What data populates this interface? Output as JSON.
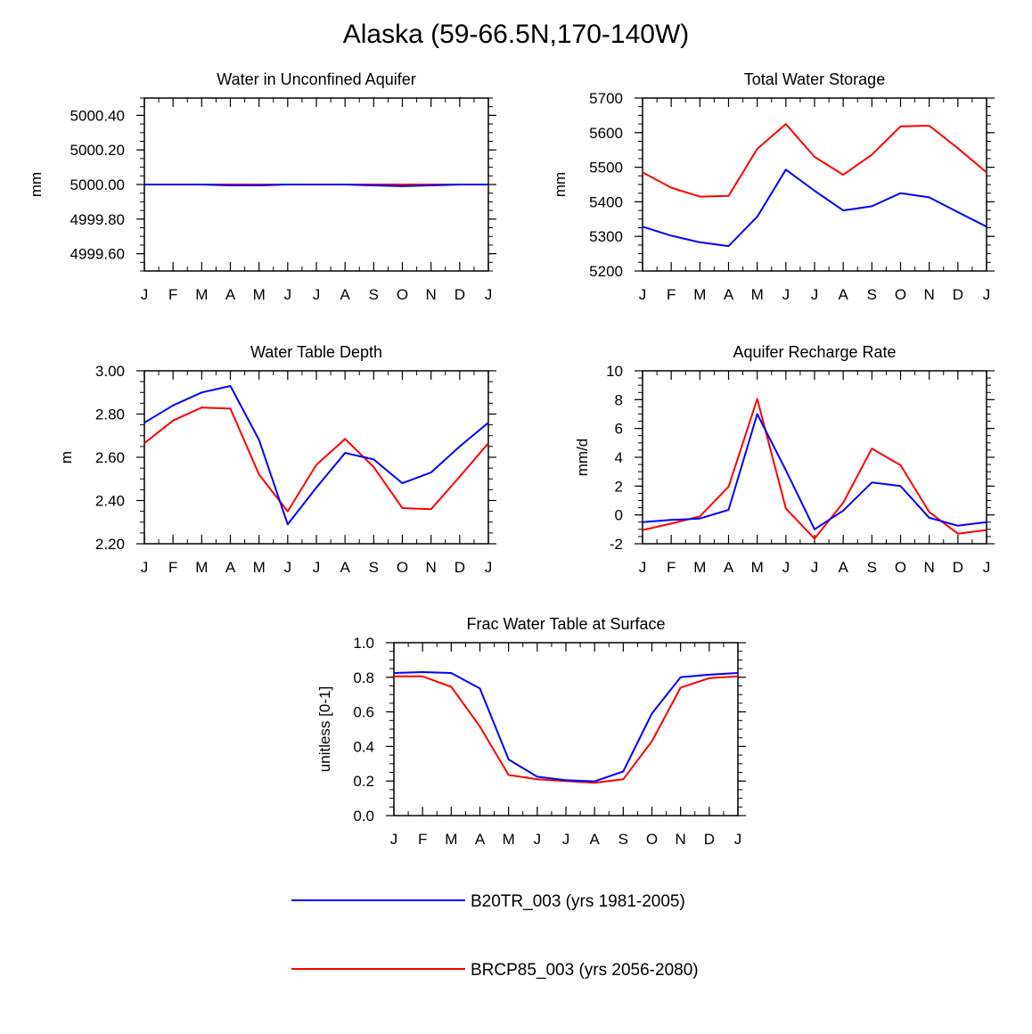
{
  "title": "Alaska (59-66.5N,170-140W)",
  "months": [
    "J",
    "F",
    "M",
    "A",
    "M",
    "J",
    "J",
    "A",
    "S",
    "O",
    "N",
    "D",
    "J"
  ],
  "series_info": [
    {
      "name": "B20TR_003 (yrs 1981-2005)",
      "color": "#0000ff"
    },
    {
      "name": "BRCP85_003 (yrs 2056-2080)",
      "color": "#ff0000"
    }
  ],
  "chart_data": [
    {
      "type": "line",
      "title": "Water in Unconfined Aquifer",
      "ylabel": "mm",
      "ylim": [
        4999.5,
        5000.5
      ],
      "yticks": [
        4999.6,
        4999.8,
        5000.0,
        5000.2,
        5000.4
      ],
      "ytick_labels": [
        "4999.60",
        "4999.80",
        "5000.00",
        "5000.20",
        "5000.40"
      ],
      "categories": [
        "J",
        "F",
        "M",
        "A",
        "M",
        "J",
        "J",
        "A",
        "S",
        "O",
        "N",
        "D",
        "J"
      ],
      "series": [
        {
          "name": "B20TR_003 (yrs 1981-2005)",
          "values": [
            5000.0,
            5000.0,
            5000.0,
            4999.995,
            4999.995,
            5000.0,
            5000.0,
            5000.0,
            4999.995,
            4999.99,
            4999.995,
            5000.0,
            5000.0
          ]
        },
        {
          "name": "BRCP85_003 (yrs 2056-2080)",
          "values": [
            5000.0,
            5000.0,
            5000.0,
            5000.0,
            5000.0,
            5000.0,
            5000.0,
            5000.0,
            5000.0,
            5000.0,
            5000.0,
            5000.0,
            5000.0
          ]
        }
      ]
    },
    {
      "type": "line",
      "title": "Total Water Storage",
      "ylabel": "mm",
      "ylim": [
        5200,
        5700
      ],
      "yticks": [
        5200,
        5300,
        5400,
        5500,
        5600,
        5700
      ],
      "ytick_labels": [
        "5200",
        "5300",
        "5400",
        "5500",
        "5600",
        "5700"
      ],
      "categories": [
        "J",
        "F",
        "M",
        "A",
        "M",
        "J",
        "J",
        "A",
        "S",
        "O",
        "N",
        "D",
        "J"
      ],
      "series": [
        {
          "name": "B20TR_003 (yrs 1981-2005)",
          "values": [
            5328,
            5302,
            5283,
            5272,
            5357,
            5493,
            5432,
            5375,
            5387,
            5425,
            5413,
            5370,
            5328
          ]
        },
        {
          "name": "BRCP85_003 (yrs 2056-2080)",
          "values": [
            5485,
            5441,
            5415,
            5417,
            5553,
            5625,
            5530,
            5478,
            5536,
            5618,
            5620,
            5555,
            5485
          ]
        }
      ]
    },
    {
      "type": "line",
      "title": "Water Table Depth",
      "ylabel": "m",
      "ylim": [
        2.2,
        3.0
      ],
      "yticks": [
        2.2,
        2.4,
        2.6,
        2.8,
        3.0
      ],
      "ytick_labels": [
        "2.20",
        "2.40",
        "2.60",
        "2.80",
        "3.00"
      ],
      "categories": [
        "J",
        "F",
        "M",
        "A",
        "M",
        "J",
        "J",
        "A",
        "S",
        "O",
        "N",
        "D",
        "J"
      ],
      "series": [
        {
          "name": "B20TR_003 (yrs 1981-2005)",
          "values": [
            2.76,
            2.84,
            2.9,
            2.93,
            2.68,
            2.29,
            2.46,
            2.62,
            2.59,
            2.48,
            2.53,
            2.65,
            2.76
          ]
        },
        {
          "name": "BRCP85_003 (yrs 2056-2080)",
          "values": [
            2.665,
            2.77,
            2.83,
            2.825,
            2.52,
            2.35,
            2.565,
            2.685,
            2.555,
            2.365,
            2.36,
            2.51,
            2.665
          ]
        }
      ]
    },
    {
      "type": "line",
      "title": "Aquifer Recharge Rate",
      "ylabel": "mm/d",
      "ylim": [
        -2,
        10
      ],
      "yticks": [
        -2,
        0,
        2,
        4,
        6,
        8,
        10
      ],
      "ytick_labels": [
        "-2",
        "0",
        "2",
        "4",
        "6",
        "8",
        "10"
      ],
      "categories": [
        "J",
        "F",
        "M",
        "A",
        "M",
        "J",
        "J",
        "A",
        "S",
        "O",
        "N",
        "D",
        "J"
      ],
      "series": [
        {
          "name": "B20TR_003 (yrs 1981-2005)",
          "values": [
            -0.5,
            -0.35,
            -0.25,
            0.35,
            7.0,
            3.1,
            -1.0,
            0.3,
            2.25,
            2.0,
            -0.2,
            -0.75,
            -0.5
          ]
        },
        {
          "name": "BRCP85_003 (yrs 2056-2080)",
          "values": [
            -1.05,
            -0.6,
            -0.1,
            1.95,
            8.05,
            0.45,
            -1.65,
            0.85,
            4.6,
            3.45,
            0.2,
            -1.3,
            -1.05
          ]
        }
      ]
    },
    {
      "type": "line",
      "title": "Frac Water Table at Surface",
      "ylabel": "unitless [0-1]",
      "ylim": [
        0.0,
        1.0
      ],
      "yticks": [
        0.0,
        0.2,
        0.4,
        0.6,
        0.8,
        1.0
      ],
      "ytick_labels": [
        "0.0",
        "0.2",
        "0.4",
        "0.6",
        "0.8",
        "1.0"
      ],
      "categories": [
        "J",
        "F",
        "M",
        "A",
        "M",
        "J",
        "J",
        "A",
        "S",
        "O",
        "N",
        "D",
        "J"
      ],
      "series": [
        {
          "name": "B20TR_003 (yrs 1981-2005)",
          "values": [
            0.825,
            0.83,
            0.825,
            0.735,
            0.325,
            0.225,
            0.205,
            0.198,
            0.255,
            0.59,
            0.8,
            0.815,
            0.825
          ]
        },
        {
          "name": "BRCP85_003 (yrs 2056-2080)",
          "values": [
            0.805,
            0.805,
            0.745,
            0.515,
            0.235,
            0.21,
            0.2,
            0.19,
            0.21,
            0.43,
            0.74,
            0.795,
            0.805
          ]
        }
      ]
    }
  ]
}
